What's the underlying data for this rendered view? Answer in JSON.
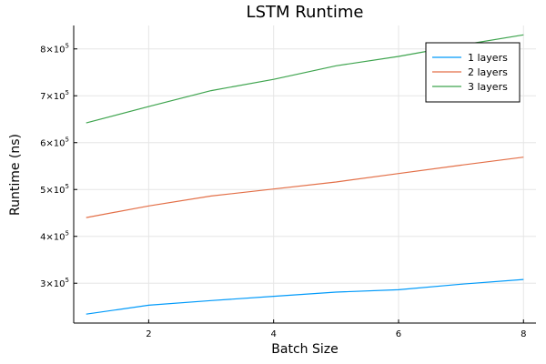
{
  "chart_data": {
    "type": "line",
    "title": "LSTM Runtime",
    "xlabel": "Batch Size",
    "ylabel": "Runtime (ns)",
    "x": [
      1,
      2,
      3,
      4,
      5,
      6,
      7,
      8
    ],
    "xlim": [
      0.8,
      8.2
    ],
    "ylim": [
      215000,
      850000
    ],
    "xticks": [
      2,
      4,
      6,
      8
    ],
    "xtick_labels": [
      "2",
      "4",
      "6",
      "8"
    ],
    "yticks": [
      300000,
      400000,
      500000,
      600000,
      700000,
      800000
    ],
    "ytick_mantissas": [
      "3",
      "4",
      "5",
      "6",
      "7",
      "8"
    ],
    "ytick_base": "×10",
    "ytick_exponent": "5",
    "grid": true,
    "legend_position": "top-right",
    "series": [
      {
        "name": "1 layers",
        "color": "#009AFA",
        "values": [
          234000,
          253000,
          263000,
          272000,
          281000,
          286000,
          298000,
          308000
        ]
      },
      {
        "name": "2 layers",
        "color": "#E36F47",
        "values": [
          440000,
          465000,
          486000,
          501000,
          516000,
          534000,
          552000,
          569000
        ]
      },
      {
        "name": "3 layers",
        "color": "#3EA44E",
        "values": [
          642000,
          677000,
          711000,
          735000,
          764000,
          784000,
          808000,
          830000
        ]
      }
    ]
  }
}
